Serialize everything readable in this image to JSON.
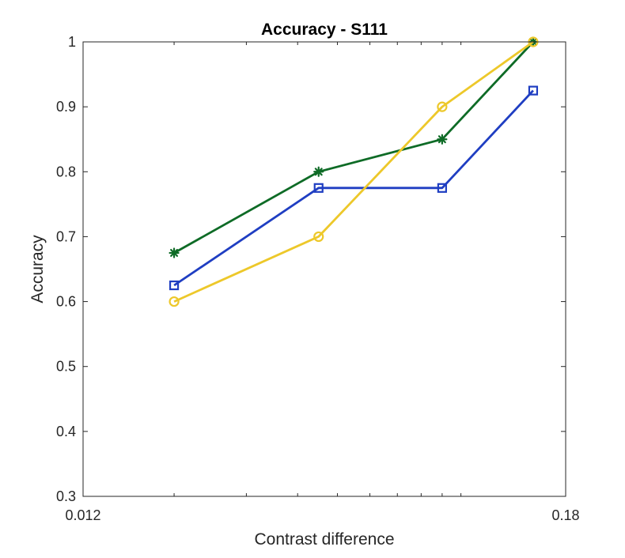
{
  "chart_data": {
    "type": "line",
    "title": "Accuracy - S111",
    "xlabel": "Contrast difference",
    "ylabel": "Accuracy",
    "x_scale": "log",
    "xlim": [
      0.012,
      0.18
    ],
    "ylim": [
      0.3,
      1
    ],
    "x_tick_labels": [
      "0.012",
      "0.18"
    ],
    "y_ticks": [
      0.3,
      0.4,
      0.5,
      0.6,
      0.7,
      0.8,
      0.9,
      1
    ],
    "y_tick_labels": [
      "0.3",
      "0.4",
      "0.5",
      "0.6",
      "0.7",
      "0.8",
      "0.9",
      "1"
    ],
    "grid": false,
    "legend": "none",
    "x": [
      0.02,
      0.045,
      0.09,
      0.15
    ],
    "series": [
      {
        "values": [
          0.675,
          0.8,
          0.85,
          1.0
        ],
        "color": "#0E6B26",
        "marker": "asterisk"
      },
      {
        "values": [
          0.625,
          0.775,
          0.775,
          0.925
        ],
        "color": "#1F3EC2",
        "marker": "square"
      },
      {
        "values": [
          0.6,
          0.7,
          0.9,
          1.0
        ],
        "color": "#EDC82A",
        "marker": "circle"
      }
    ]
  }
}
